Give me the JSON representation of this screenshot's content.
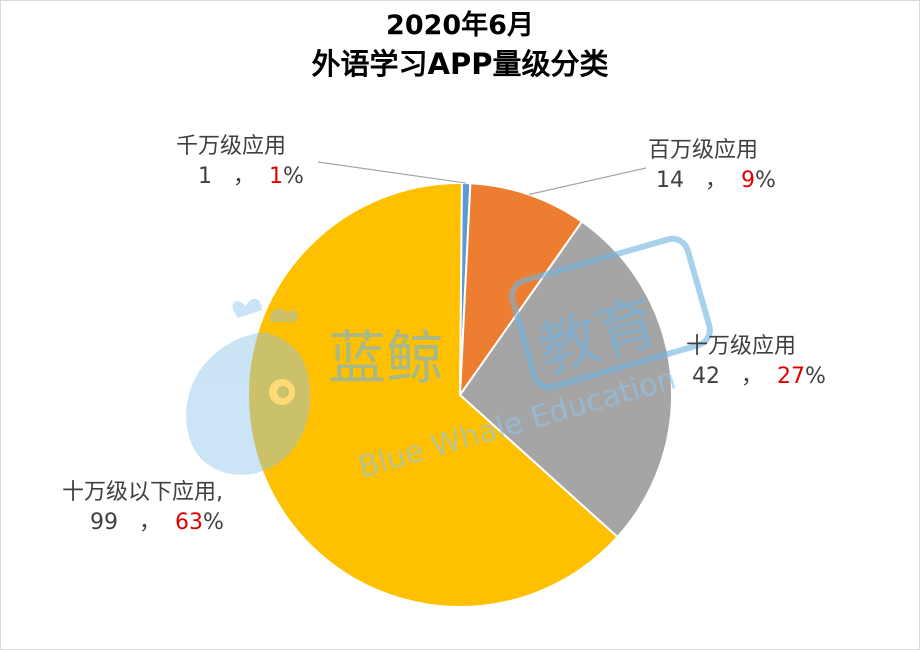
{
  "chart_data": {
    "type": "pie",
    "title": "2020年6月",
    "subtitle": "外语学习APP量级分类",
    "slices": [
      {
        "name": "千万级应用",
        "value": 1,
        "percent": "1",
        "color": "#5b9bd5"
      },
      {
        "name": "百万级应用",
        "value": 14,
        "percent": "9",
        "color": "#ed7d31"
      },
      {
        "name": "十万级应用",
        "value": 42,
        "percent": "27",
        "color": "#a5a5a5"
      },
      {
        "name": "十万级以下应用,",
        "value": 99,
        "percent": "63",
        "color": "#ffc000"
      }
    ],
    "label_separator": "，",
    "percent_sign": "%",
    "legend": "none"
  },
  "watermark": {
    "brand_cn": "蓝鲸",
    "brand_cn_box": "教育",
    "brand_en": "Blue Whale Education",
    "color": "#5aace0"
  }
}
